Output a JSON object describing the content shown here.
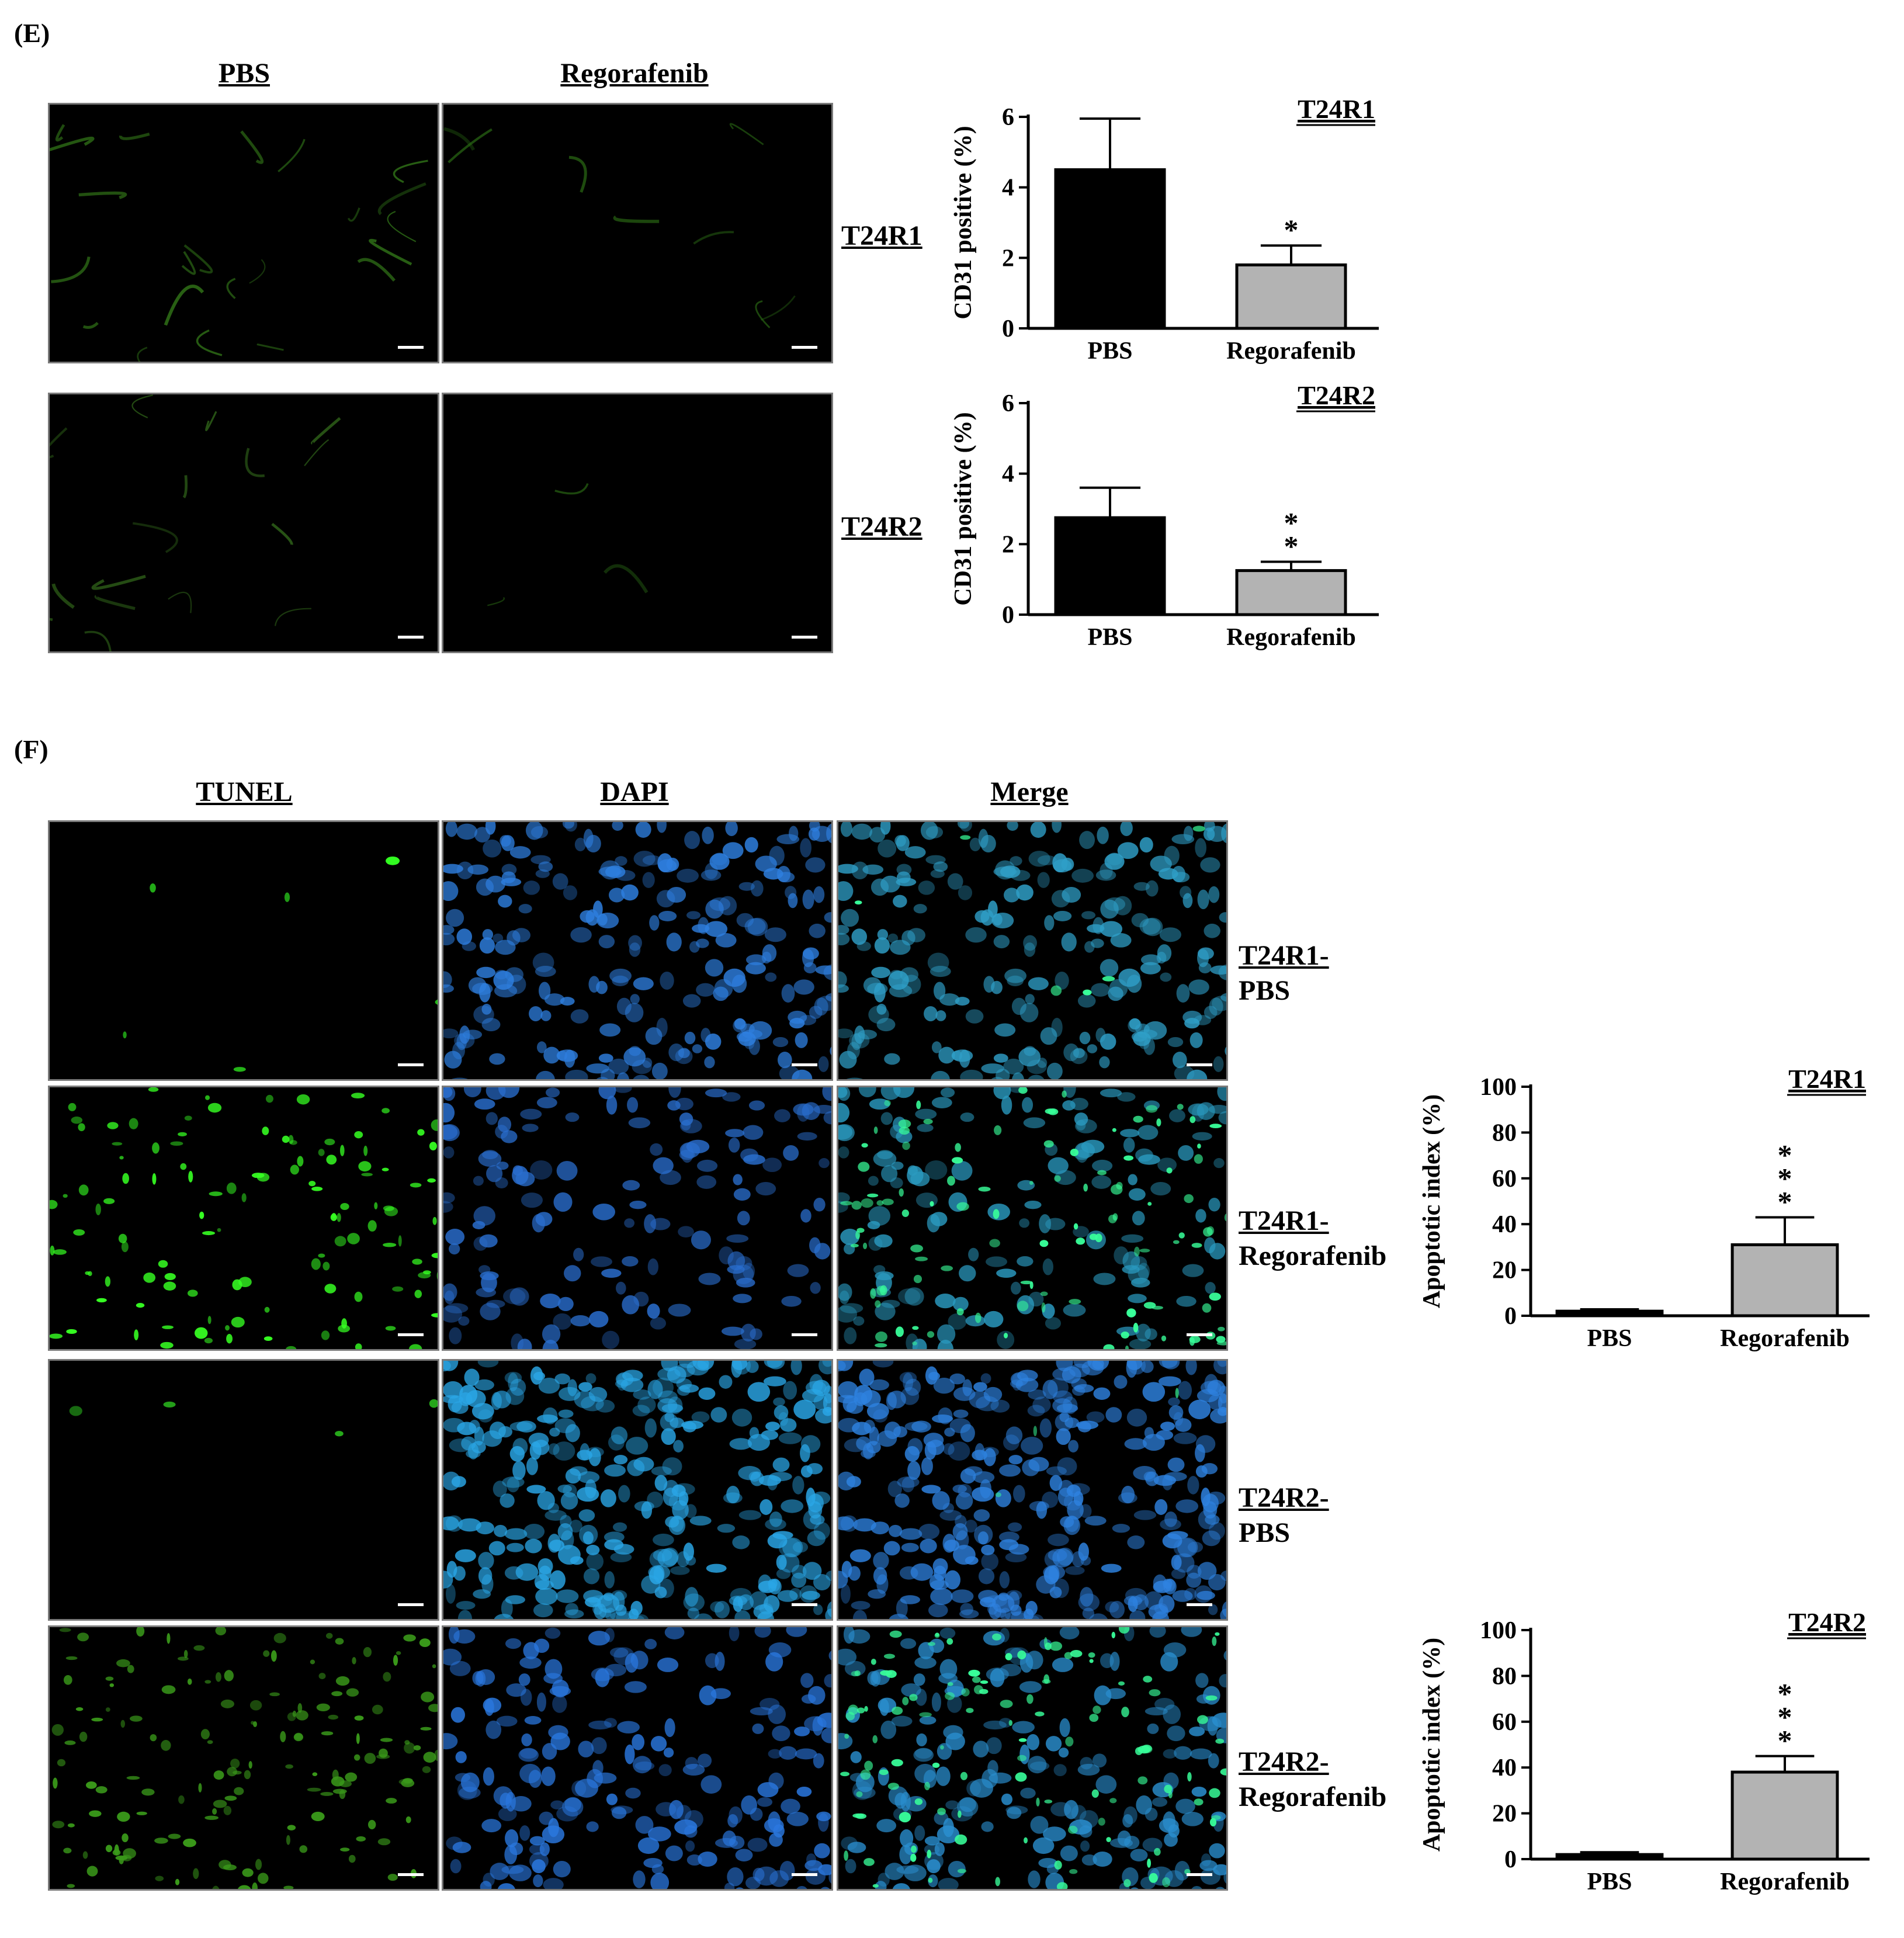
{
  "panel_e": {
    "label": "(E)",
    "col_titles": [
      "PBS",
      "Regorafenib"
    ],
    "row_labels": [
      "T24R1",
      "T24R2"
    ]
  },
  "panel_f": {
    "label": "(F)",
    "col_titles": [
      "TUNEL",
      "DAPI",
      "Merge"
    ],
    "row_labels": [
      {
        "line1": "T24R1-",
        "line2": "PBS"
      },
      {
        "line1": "T24R1-",
        "line2": "Regorafenib"
      },
      {
        "line1": "T24R2-",
        "line2": "PBS"
      },
      {
        "line1": "T24R2-",
        "line2": "Regorafenib"
      }
    ]
  },
  "colors": {
    "pbs_bar": "#000000",
    "regorafenib_bar": "#b3b3b3",
    "tunel_stain": "#3cff28",
    "dapi_stain": "#2a84ff"
  },
  "chart_data": [
    {
      "id": "cd31-t24r1",
      "type": "bar",
      "title": "T24R1",
      "ylabel": "CD31 positive (%)",
      "categories": [
        "PBS",
        "Regorafenib"
      ],
      "values": [
        4.5,
        1.8
      ],
      "errors": [
        1.45,
        0.55
      ],
      "significance": [
        "",
        "*"
      ],
      "ylim": [
        0,
        6
      ],
      "yticks": [
        0,
        2,
        4,
        6
      ]
    },
    {
      "id": "cd31-t24r2",
      "type": "bar",
      "title": "T24R2",
      "ylabel": "CD31 positive (%)",
      "categories": [
        "PBS",
        "Regorafenib"
      ],
      "values": [
        2.75,
        1.25
      ],
      "errors": [
        0.85,
        0.25
      ],
      "significance": [
        "",
        "**"
      ],
      "ylim": [
        0,
        6
      ],
      "yticks": [
        0,
        2,
        4,
        6
      ]
    },
    {
      "id": "apoptotic-t24r1",
      "type": "bar",
      "title": "T24R1",
      "ylabel": "Apoptotic index (%)",
      "categories": [
        "PBS",
        "Regorafenib"
      ],
      "values": [
        2,
        31
      ],
      "errors": [
        0.8,
        12
      ],
      "significance": [
        "",
        "***"
      ],
      "ylim": [
        0,
        100
      ],
      "yticks": [
        0,
        20,
        40,
        60,
        80,
        100
      ]
    },
    {
      "id": "apoptotic-t24r2",
      "type": "bar",
      "title": "T24R2",
      "ylabel": "Apoptotic index (%)",
      "categories": [
        "PBS",
        "Regorafenib"
      ],
      "values": [
        2,
        38
      ],
      "errors": [
        1,
        7
      ],
      "significance": [
        "",
        "***"
      ],
      "ylim": [
        0,
        100
      ],
      "yticks": [
        0,
        20,
        40,
        60,
        80,
        100
      ]
    }
  ]
}
